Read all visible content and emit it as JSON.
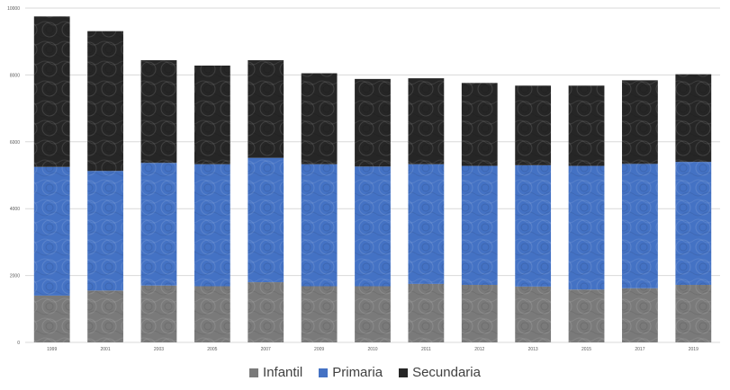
{
  "chart_data": {
    "type": "bar",
    "stacked": true,
    "categories": [
      "1999",
      "2001",
      "2003",
      "2005",
      "2007",
      "2009",
      "2010",
      "2011",
      "2012",
      "2013",
      "2015",
      "2017",
      "2019"
    ],
    "series": [
      {
        "name": "Infantil",
        "color": "#7a7a7a",
        "values": [
          1400,
          1550,
          1700,
          1680,
          1800,
          1680,
          1680,
          1750,
          1720,
          1670,
          1580,
          1620,
          1720
        ]
      },
      {
        "name": "Primaria",
        "color": "#4472c4",
        "values": [
          3850,
          3580,
          3670,
          3650,
          3720,
          3650,
          3580,
          3580,
          3560,
          3630,
          3700,
          3720,
          3680
        ]
      },
      {
        "name": "Secundaria",
        "color": "#262626",
        "values": [
          4500,
          4180,
          3070,
          2950,
          2920,
          2720,
          2620,
          2570,
          2480,
          2380,
          2400,
          2500,
          2620
        ]
      }
    ],
    "y_ticks": [
      "0",
      "2000",
      "4000",
      "6000",
      "8000",
      "10000"
    ],
    "ylim": [
      0,
      10000
    ],
    "grid": true,
    "legend_position": "bottom"
  }
}
